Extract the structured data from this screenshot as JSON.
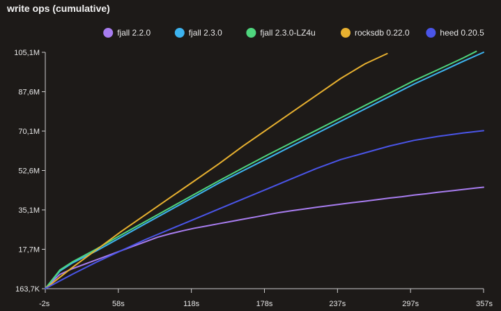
{
  "chart_data": {
    "type": "line",
    "title": "write ops (cumulative)",
    "xlabel": "",
    "ylabel": "",
    "x_ticks": [
      "-2s",
      "58s",
      "118s",
      "178s",
      "237s",
      "297s",
      "357s"
    ],
    "y_ticks": [
      "163,7K",
      "17,7M",
      "35,1M",
      "52,6M",
      "70,1M",
      "87,6M",
      "105,1M"
    ],
    "xlim": [
      -2,
      357
    ],
    "ylim": [
      0.1637,
      105.1
    ],
    "grid": false,
    "legend_position": "top-right",
    "series": [
      {
        "name": "fjall 2.2.0",
        "color": "#a87df0",
        "x": [
          -2,
          5,
          10,
          20,
          30,
          40,
          50,
          60,
          70,
          80,
          90,
          100,
          110,
          120,
          130,
          140,
          150,
          160,
          170,
          180,
          190,
          200,
          210,
          220,
          230,
          240,
          250,
          260,
          270,
          280,
          290,
          300,
          310,
          320,
          330,
          340,
          350,
          357
        ],
        "y": [
          0.2,
          4.0,
          6.5,
          9.0,
          11.0,
          13.0,
          15.0,
          17.0,
          19.0,
          21.0,
          23.0,
          24.5,
          25.8,
          27.0,
          28.0,
          29.0,
          30.0,
          31.0,
          32.0,
          33.0,
          34.0,
          34.8,
          35.5,
          36.3,
          37.0,
          37.7,
          38.4,
          39.0,
          39.7,
          40.4,
          41.0,
          41.7,
          42.3,
          43.0,
          43.6,
          44.2,
          44.8,
          45.2
        ]
      },
      {
        "name": "fjall 2.3.0",
        "color": "#3db4f0",
        "x": [
          -2,
          10,
          20,
          40,
          60,
          80,
          100,
          120,
          140,
          160,
          180,
          200,
          220,
          240,
          260,
          280,
          300,
          320,
          340,
          357
        ],
        "y": [
          0.2,
          8.0,
          11.5,
          17.0,
          23.0,
          29.0,
          35.0,
          41.0,
          47.0,
          52.5,
          58.0,
          63.5,
          69.0,
          74.5,
          80.0,
          85.5,
          91.0,
          96.0,
          101.0,
          105.1
        ]
      },
      {
        "name": "fjall 2.3.0-LZ4u",
        "color": "#4fd67e",
        "x": [
          -2,
          10,
          20,
          40,
          60,
          80,
          100,
          120,
          140,
          160,
          180,
          200,
          220,
          240,
          260,
          280,
          300,
          320,
          340,
          351
        ],
        "y": [
          0.2,
          8.5,
          12.0,
          17.8,
          24.0,
          30.0,
          36.0,
          42.0,
          48.0,
          53.8,
          59.5,
          65.0,
          70.5,
          76.0,
          81.5,
          87.0,
          92.5,
          97.5,
          102.5,
          105.5
        ]
      },
      {
        "name": "rocksdb 0.22.0",
        "color": "#e8b130",
        "x": [
          -2,
          20,
          40,
          60,
          80,
          100,
          120,
          140,
          160,
          180,
          200,
          220,
          240,
          260,
          278
        ],
        "y": [
          0.2,
          9.5,
          17.5,
          25.5,
          33.0,
          40.5,
          48.0,
          55.5,
          63.5,
          71.0,
          78.5,
          86.0,
          93.5,
          100.0,
          104.5
        ]
      },
      {
        "name": "heed 0.20.5",
        "color": "#4a55e8",
        "x": [
          -2,
          20,
          40,
          60,
          80,
          100,
          120,
          140,
          160,
          180,
          200,
          220,
          240,
          260,
          280,
          300,
          320,
          340,
          357
        ],
        "y": [
          0.2,
          6.5,
          12.0,
          17.0,
          22.0,
          26.5,
          31.0,
          35.5,
          40.0,
          44.5,
          49.0,
          53.5,
          57.5,
          60.5,
          63.5,
          66.0,
          67.8,
          69.3,
          70.3
        ]
      }
    ]
  }
}
